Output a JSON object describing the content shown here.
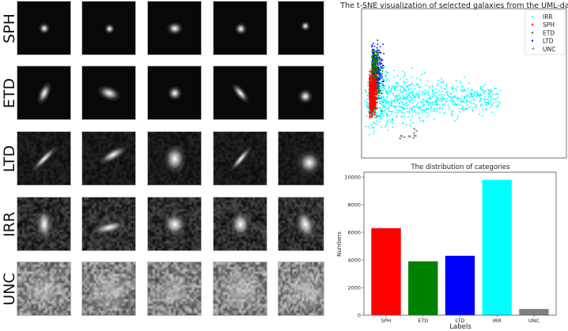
{
  "galaxy_grid": {
    "rows": [
      "SPH",
      "ETD",
      "LTD",
      "IRR",
      "UNC"
    ],
    "columns_per_row": 5
  },
  "chart_data": [
    {
      "type": "scatter",
      "title": "The t-SNE visualization of selected galaxies from the UML-dataset",
      "xlabel": "",
      "ylabel": "",
      "ticks_shown": false,
      "legend_placement": "top-right",
      "series": [
        {
          "name": "IRR",
          "color": "#00ffff"
        },
        {
          "name": "SPH",
          "color": "#ff0000"
        },
        {
          "name": "ETD",
          "color": "#008000"
        },
        {
          "name": "LTD",
          "color": "#0000ff"
        },
        {
          "name": "UNC",
          "color": "#808080",
          "marker": "<"
        }
      ]
    },
    {
      "type": "bar",
      "title": "The distribution of categories",
      "xlabel": "Labels",
      "ylabel": "Numbers",
      "categories": [
        "SPH",
        "ETD",
        "LTD",
        "IRR",
        "UNC"
      ],
      "values": [
        6300,
        3900,
        4300,
        9800,
        450
      ],
      "colors": [
        "#ff0000",
        "#008000",
        "#0000ff",
        "#00ffff",
        "#808080"
      ],
      "ylim": [
        0,
        10350
      ],
      "yticks": [
        0,
        2000,
        4000,
        6000,
        8000,
        10000
      ],
      "grid": false
    }
  ]
}
